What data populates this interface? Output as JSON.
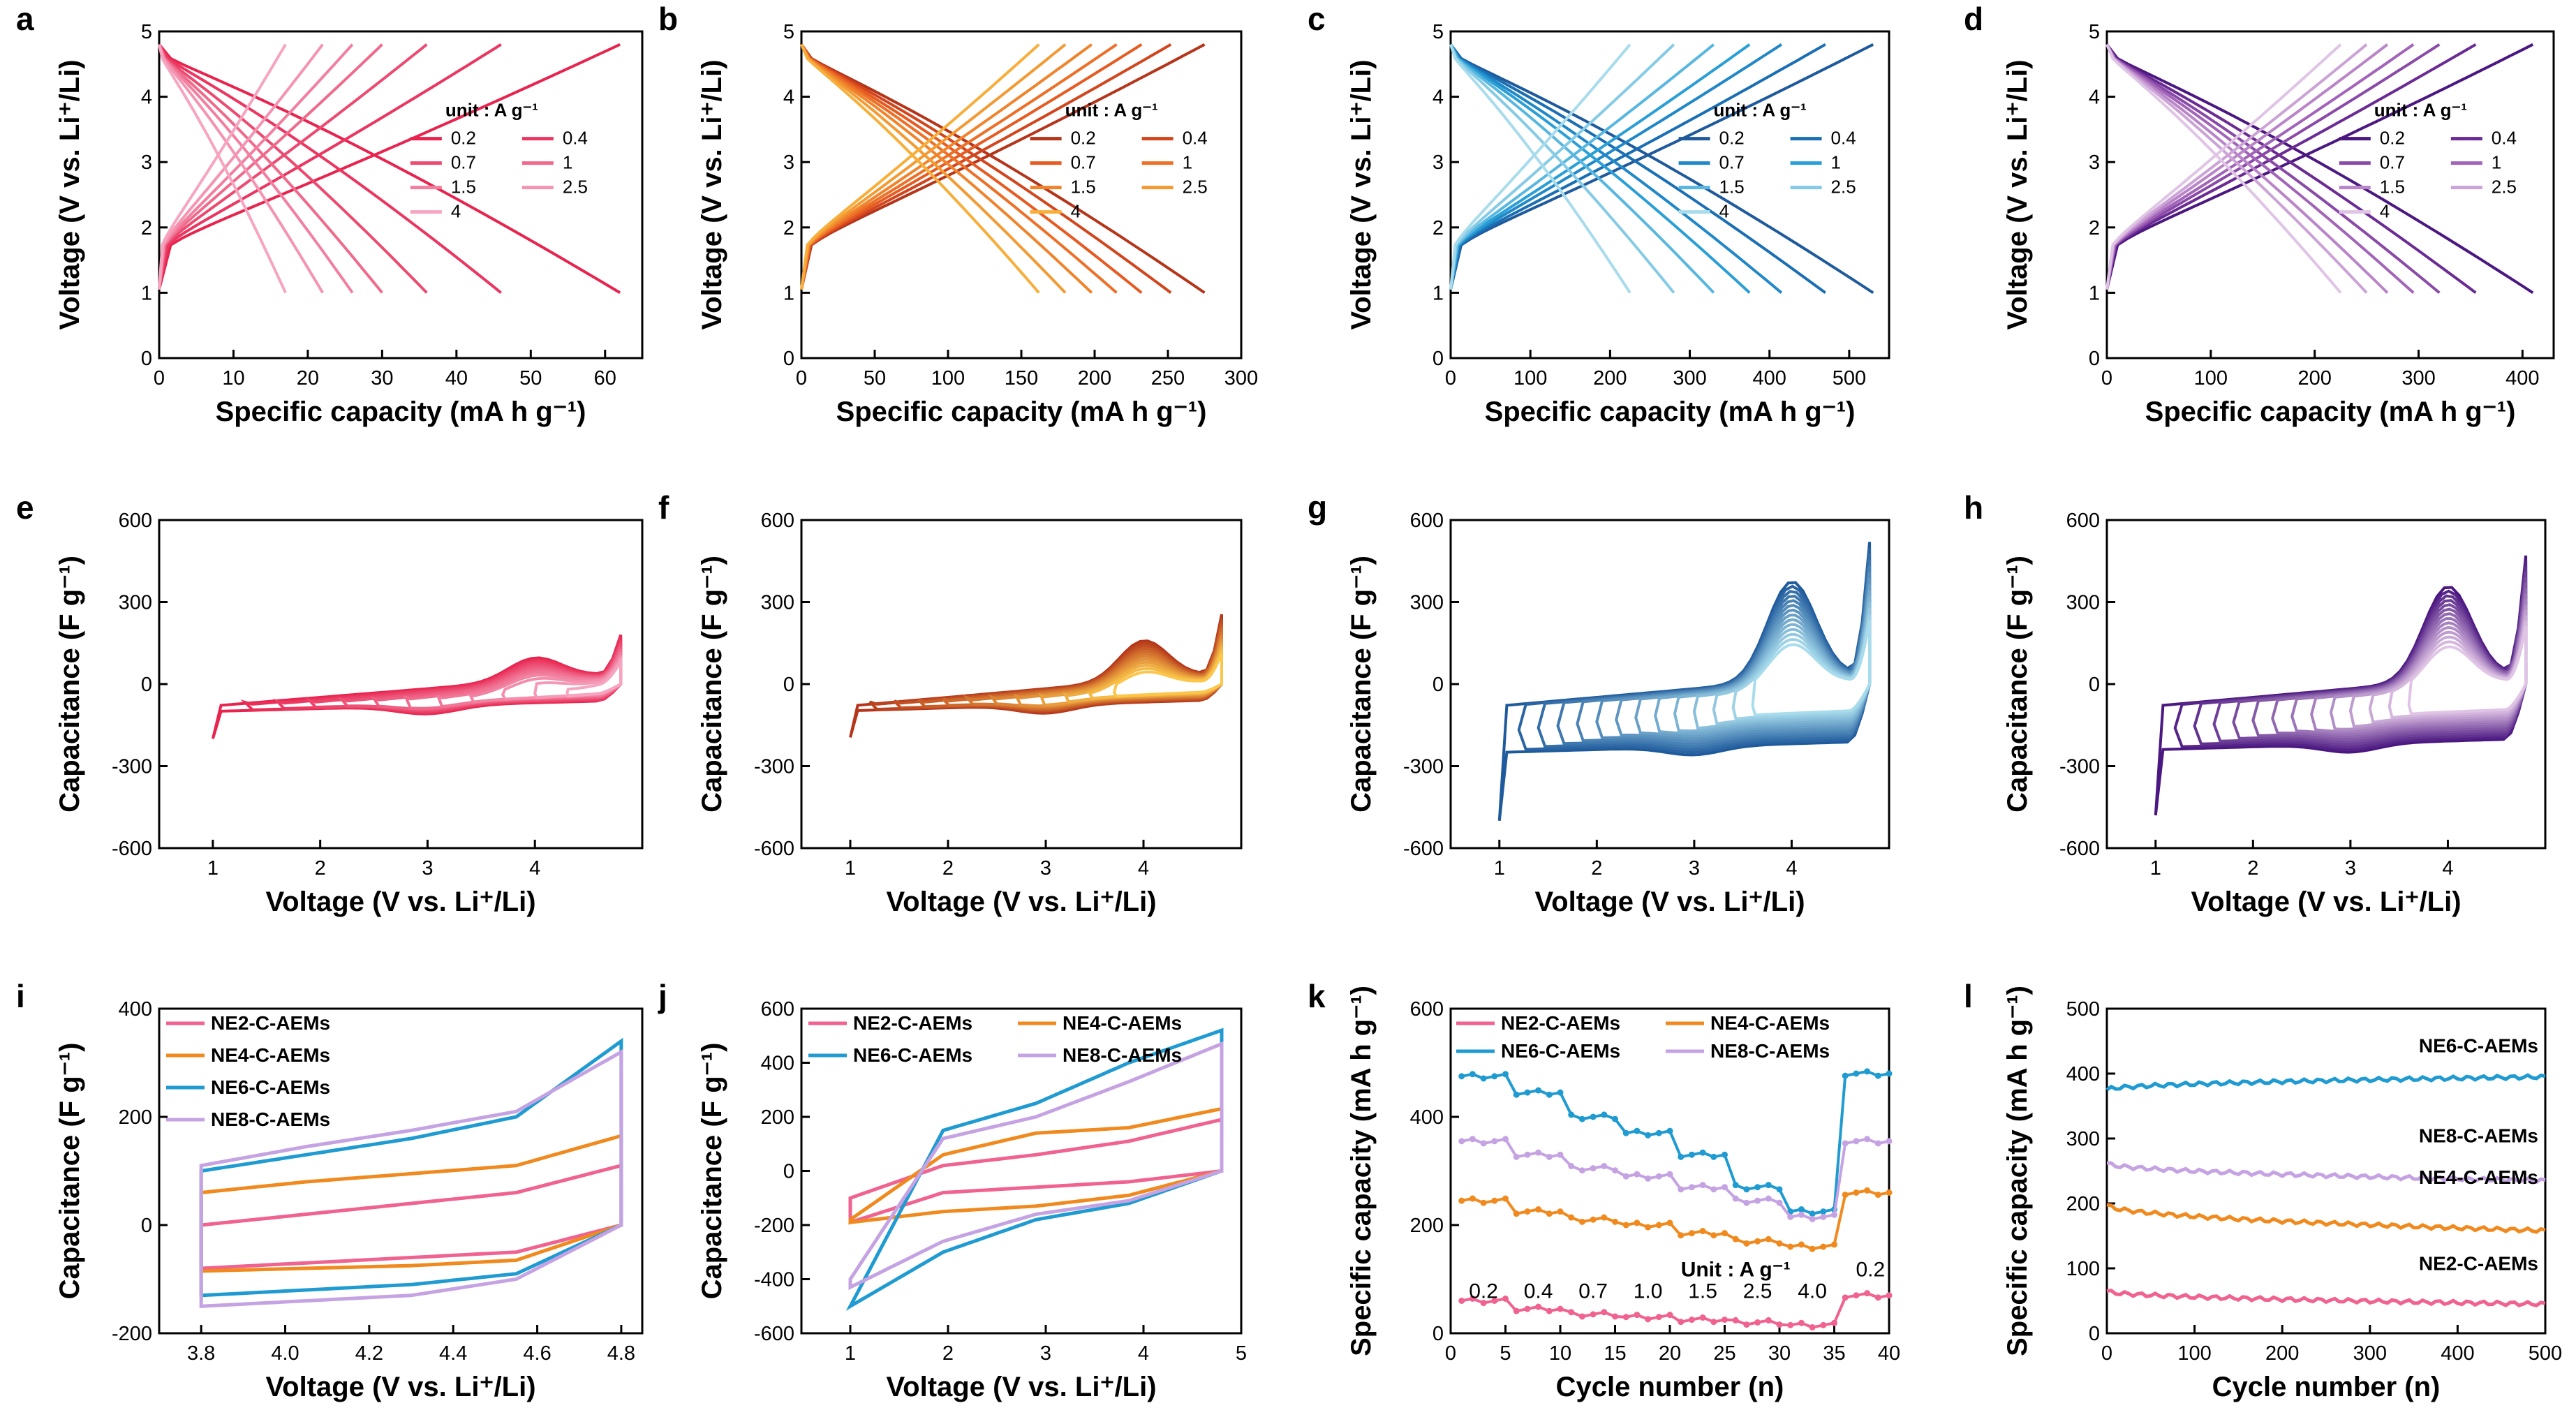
{
  "chart_data": [
    {
      "panel": "a",
      "type": "line",
      "xlabel": "Specific capacity (mA h g⁻¹)",
      "ylabel": "Voltage (V vs. Li⁺/Li)",
      "xlim": [
        0,
        65
      ],
      "ylim": [
        0,
        5
      ],
      "xticks": [
        "0",
        "10",
        "20",
        "30",
        "40",
        "50",
        "60"
      ],
      "yticks": [
        "0",
        "1",
        "2",
        "3",
        "4",
        "5"
      ],
      "legend_title": "unit : A g⁻¹",
      "series": [
        {
          "name": "0.2",
          "capacity": 62,
          "color": "#e8234e"
        },
        {
          "name": "0.4",
          "capacity": 46,
          "color": "#ea3660"
        },
        {
          "name": "0.7",
          "capacity": 36,
          "color": "#ec4a70"
        },
        {
          "name": "1",
          "capacity": 30,
          "color": "#ef6a8b"
        },
        {
          "name": "1.5",
          "capacity": 26,
          "color": "#f27fa0"
        },
        {
          "name": "2.5",
          "capacity": 22,
          "color": "#f494b1"
        },
        {
          "name": "4",
          "capacity": 17,
          "color": "#f6a5c0"
        }
      ]
    },
    {
      "panel": "b",
      "type": "line",
      "xlabel": "Specific capacity (mA h g⁻¹)",
      "ylabel": "Voltage (V vs. Li⁺/Li)",
      "xlim": [
        0,
        300
      ],
      "ylim": [
        0,
        5
      ],
      "xticks": [
        "0",
        "50",
        "100",
        "150",
        "200",
        "250",
        "300"
      ],
      "yticks": [
        "0",
        "1",
        "2",
        "3",
        "4",
        "5"
      ],
      "legend_title": "unit : A g⁻¹",
      "series": [
        {
          "name": "0.2",
          "capacity": 275,
          "color": "#b5351a"
        },
        {
          "name": "0.4",
          "capacity": 252,
          "color": "#d2461e"
        },
        {
          "name": "0.7",
          "capacity": 232,
          "color": "#e65b22"
        },
        {
          "name": "1",
          "capacity": 215,
          "color": "#ec7027"
        },
        {
          "name": "1.5",
          "capacity": 198,
          "color": "#f0842c"
        },
        {
          "name": "2.5",
          "capacity": 180,
          "color": "#f39a33"
        },
        {
          "name": "4",
          "capacity": 162,
          "color": "#f7ae3a"
        }
      ]
    },
    {
      "panel": "c",
      "type": "line",
      "xlabel": "Specific capacity (mA h g⁻¹)",
      "ylabel": "Voltage (V vs. Li⁺/Li)",
      "xlim": [
        0,
        550
      ],
      "ylim": [
        0,
        5
      ],
      "xticks": [
        "0",
        "100",
        "200",
        "300",
        "400",
        "500"
      ],
      "yticks": [
        "0",
        "1",
        "2",
        "3",
        "4",
        "5"
      ],
      "legend_title": "unit : A g⁻¹",
      "series": [
        {
          "name": "0.2",
          "capacity": 530,
          "color": "#1f5a9c"
        },
        {
          "name": "0.4",
          "capacity": 470,
          "color": "#1a6fb4"
        },
        {
          "name": "0.7",
          "capacity": 415,
          "color": "#2188c8"
        },
        {
          "name": "1",
          "capacity": 375,
          "color": "#2a9fd6"
        },
        {
          "name": "1.5",
          "capacity": 330,
          "color": "#58b7e0"
        },
        {
          "name": "2.5",
          "capacity": 280,
          "color": "#86cbe6"
        },
        {
          "name": "4",
          "capacity": 225,
          "color": "#a8dcec"
        }
      ]
    },
    {
      "panel": "d",
      "type": "line",
      "xlabel": "Specific capacity (mA h g⁻¹)",
      "ylabel": "Voltage (V vs. Li⁺/Li)",
      "xlim": [
        0,
        430
      ],
      "ylim": [
        0,
        5
      ],
      "xticks": [
        "0",
        "100",
        "200",
        "300",
        "400"
      ],
      "yticks": [
        "0",
        "1",
        "2",
        "3",
        "4",
        "5"
      ],
      "legend_title": "unit : A g⁻¹",
      "series": [
        {
          "name": "0.2",
          "capacity": 410,
          "color": "#4b1780"
        },
        {
          "name": "0.4",
          "capacity": 355,
          "color": "#6a2b93"
        },
        {
          "name": "0.7",
          "capacity": 320,
          "color": "#8a4aa8"
        },
        {
          "name": "1",
          "capacity": 295,
          "color": "#a264b8"
        },
        {
          "name": "1.5",
          "capacity": 270,
          "color": "#b985c8"
        },
        {
          "name": "2.5",
          "capacity": 250,
          "color": "#cba3d6"
        },
        {
          "name": "4",
          "capacity": 225,
          "color": "#e0c4e6"
        }
      ]
    },
    {
      "panel": "e",
      "type": "line",
      "xlabel": "Voltage (V vs. Li⁺/Li)",
      "ylabel": "Capacitance (F g⁻¹)",
      "xlim": [
        0.5,
        5
      ],
      "ylim": [
        -600,
        600
      ],
      "xticks": [
        "1",
        "2",
        "3",
        "4"
      ],
      "yticks": [
        "600",
        "300",
        "0",
        "-300",
        "-600"
      ],
      "lower_limits": [
        1.0,
        1.3,
        1.6,
        1.9,
        2.2,
        2.5,
        2.8,
        3.1,
        3.4,
        3.7,
        4.0,
        4.3
      ],
      "upper_cap": 180,
      "lower_cap": -200,
      "peak": 90,
      "colors": [
        "#e8234e",
        "#f6a5c0"
      ]
    },
    {
      "panel": "f",
      "type": "line",
      "xlabel": "Voltage (V vs. Li⁺/Li)",
      "ylabel": "Capacitance (F g⁻¹)",
      "xlim": [
        0.5,
        5
      ],
      "ylim": [
        -600,
        600
      ],
      "xticks": [
        "1",
        "2",
        "3",
        "4"
      ],
      "yticks": [
        "600",
        "300",
        "0",
        "-300",
        "-600"
      ],
      "lower_limits": [
        1.0,
        1.2,
        1.45,
        1.7,
        1.95,
        2.2,
        2.45,
        2.7,
        2.95,
        3.2,
        3.45,
        3.7
      ],
      "upper_cap": 255,
      "lower_cap": -195,
      "peak": 160,
      "colors": [
        "#b5351a",
        "#fbc64a"
      ]
    },
    {
      "panel": "g",
      "type": "line",
      "xlabel": "Voltage (V vs. Li⁺/Li)",
      "ylabel": "Capacitance (F g⁻¹)",
      "xlim": [
        0.5,
        5
      ],
      "ylim": [
        -600,
        600
      ],
      "xticks": [
        "1",
        "2",
        "3",
        "4"
      ],
      "yticks": [
        "600",
        "300",
        "0",
        "-300",
        "-600"
      ],
      "lower_limits": [
        1.0,
        1.2,
        1.4,
        1.6,
        1.8,
        2.0,
        2.2,
        2.4,
        2.6,
        2.8,
        3.0,
        3.2,
        3.4,
        3.6
      ],
      "upper_cap": 520,
      "lower_cap": -500,
      "peak": 400,
      "colors": [
        "#1f5a9c",
        "#a8dcec"
      ]
    },
    {
      "panel": "h",
      "type": "line",
      "xlabel": "Voltage (V vs. Li⁺/Li)",
      "ylabel": "Capacitance (F g⁻¹)",
      "xlim": [
        0.5,
        5
      ],
      "ylim": [
        -600,
        600
      ],
      "xticks": [
        "1",
        "2",
        "3",
        "4"
      ],
      "yticks": [
        "600",
        "300",
        "0",
        "-300",
        "-600"
      ],
      "lower_limits": [
        1.0,
        1.2,
        1.4,
        1.6,
        1.8,
        2.0,
        2.2,
        2.4,
        2.6,
        2.8,
        3.0,
        3.2,
        3.4,
        3.6
      ],
      "upper_cap": 470,
      "lower_cap": -480,
      "peak": 380,
      "colors": [
        "#4b1780",
        "#e0c4e6"
      ]
    },
    {
      "panel": "i",
      "type": "line",
      "xlabel": "Voltage (V vs. Li⁺/Li)",
      "ylabel": "Capacitance (F g⁻¹)",
      "xlim": [
        3.7,
        4.85
      ],
      "ylim": [
        -200,
        400
      ],
      "xticks": [
        "3.8",
        "4.0",
        "4.2",
        "4.4",
        "4.6",
        "4.8"
      ],
      "yticks": [
        "-200",
        "0",
        "200",
        "400"
      ],
      "series": [
        {
          "name": "NE2-C-AEMs",
          "color": "#f0628f",
          "upper": [
            0,
            20,
            40,
            60,
            110
          ],
          "lower": [
            -80,
            -70,
            -60,
            -50,
            0
          ]
        },
        {
          "name": "NE4-C-AEMs",
          "color": "#f08a1e",
          "upper": [
            60,
            80,
            95,
            110,
            165
          ],
          "lower": [
            -85,
            -80,
            -75,
            -65,
            0
          ]
        },
        {
          "name": "NE6-C-AEMs",
          "color": "#1f9bd1",
          "upper": [
            100,
            130,
            160,
            200,
            340
          ],
          "lower": [
            -130,
            -120,
            -110,
            -90,
            0
          ]
        },
        {
          "name": "NE8-C-AEMs",
          "color": "#c5a3e3",
          "upper": [
            110,
            145,
            175,
            210,
            320
          ],
          "lower": [
            -150,
            -140,
            -130,
            -100,
            0
          ]
        }
      ]
    },
    {
      "panel": "j",
      "type": "line",
      "xlabel": "Voltage (V vs. Li⁺/Li)",
      "ylabel": "Capacitance (F g⁻¹)",
      "xlim": [
        0.5,
        5
      ],
      "ylim": [
        -600,
        600
      ],
      "xticks": [
        "1",
        "2",
        "3",
        "4",
        "5"
      ],
      "yticks": [
        "600",
        "400",
        "200",
        "0",
        "-200",
        "-400",
        "-600"
      ],
      "series": [
        {
          "name": "NE2-C-AEMs",
          "color": "#f0628f",
          "upper": [
            -100,
            20,
            60,
            110,
            190
          ],
          "lower": [
            -190,
            -80,
            -60,
            -40,
            0
          ]
        },
        {
          "name": "NE4-C-AEMs",
          "color": "#f08a1e",
          "upper": [
            -180,
            60,
            140,
            160,
            230
          ],
          "lower": [
            -190,
            -150,
            -130,
            -90,
            0
          ]
        },
        {
          "name": "NE6-C-AEMs",
          "color": "#1f9bd1",
          "upper": [
            -500,
            150,
            250,
            400,
            520
          ],
          "lower": [
            -500,
            -300,
            -180,
            -120,
            0
          ]
        },
        {
          "name": "NE8-C-AEMs",
          "color": "#c5a3e3",
          "upper": [
            -400,
            120,
            200,
            330,
            470
          ],
          "lower": [
            -430,
            -260,
            -160,
            -110,
            0
          ]
        }
      ]
    },
    {
      "panel": "k",
      "type": "line",
      "xlabel": "Cycle number (n)",
      "ylabel": "Specific capacity (mA h g⁻¹)",
      "xlim": [
        0,
        40
      ],
      "ylim": [
        0,
        600
      ],
      "xticks": [
        "0",
        "5",
        "10",
        "15",
        "20",
        "25",
        "30",
        "35",
        "40"
      ],
      "yticks": [
        "0",
        "200",
        "400",
        "600"
      ],
      "unit_label": "Unit : A g⁻¹",
      "rate_labels": [
        "0.2",
        "0.4",
        "0.7",
        "1.0",
        "1.5",
        "2.5",
        "4.0",
        "0.2"
      ],
      "series": [
        {
          "name": "NE2-C-AEMs",
          "color": "#f0628f",
          "steps": [
            60,
            45,
            35,
            30,
            25,
            20,
            15,
            70
          ]
        },
        {
          "name": "NE4-C-AEMs",
          "color": "#f08a1e",
          "steps": [
            245,
            225,
            210,
            200,
            185,
            170,
            160,
            260
          ]
        },
        {
          "name": "NE6-C-AEMs",
          "color": "#1f9bd1",
          "steps": [
            475,
            445,
            400,
            370,
            330,
            270,
            225,
            480
          ]
        },
        {
          "name": "NE8-C-AEMs",
          "color": "#c5a3e3",
          "steps": [
            355,
            330,
            305,
            290,
            270,
            245,
            215,
            355
          ]
        }
      ]
    },
    {
      "panel": "l",
      "type": "line",
      "xlabel": "Cycle number (n)",
      "ylabel": "Specific capacity (mA h g⁻¹)",
      "xlim": [
        0,
        500
      ],
      "ylim": [
        0,
        500
      ],
      "xticks": [
        "0",
        "100",
        "200",
        "300",
        "400",
        "500"
      ],
      "yticks": [
        "0",
        "100",
        "200",
        "300",
        "400",
        "500"
      ],
      "series": [
        {
          "name": "NE6-C-AEMs",
          "color": "#1f9bd1",
          "start": 375,
          "end": 395
        },
        {
          "name": "NE8-C-AEMs",
          "color": "#c5a3e3",
          "start": 262,
          "end": 235
        },
        {
          "name": "NE4-C-AEMs",
          "color": "#f08a1e",
          "start": 198,
          "end": 158
        },
        {
          "name": "NE2-C-AEMs",
          "color": "#f0628f",
          "start": 65,
          "end": 45
        }
      ]
    }
  ]
}
